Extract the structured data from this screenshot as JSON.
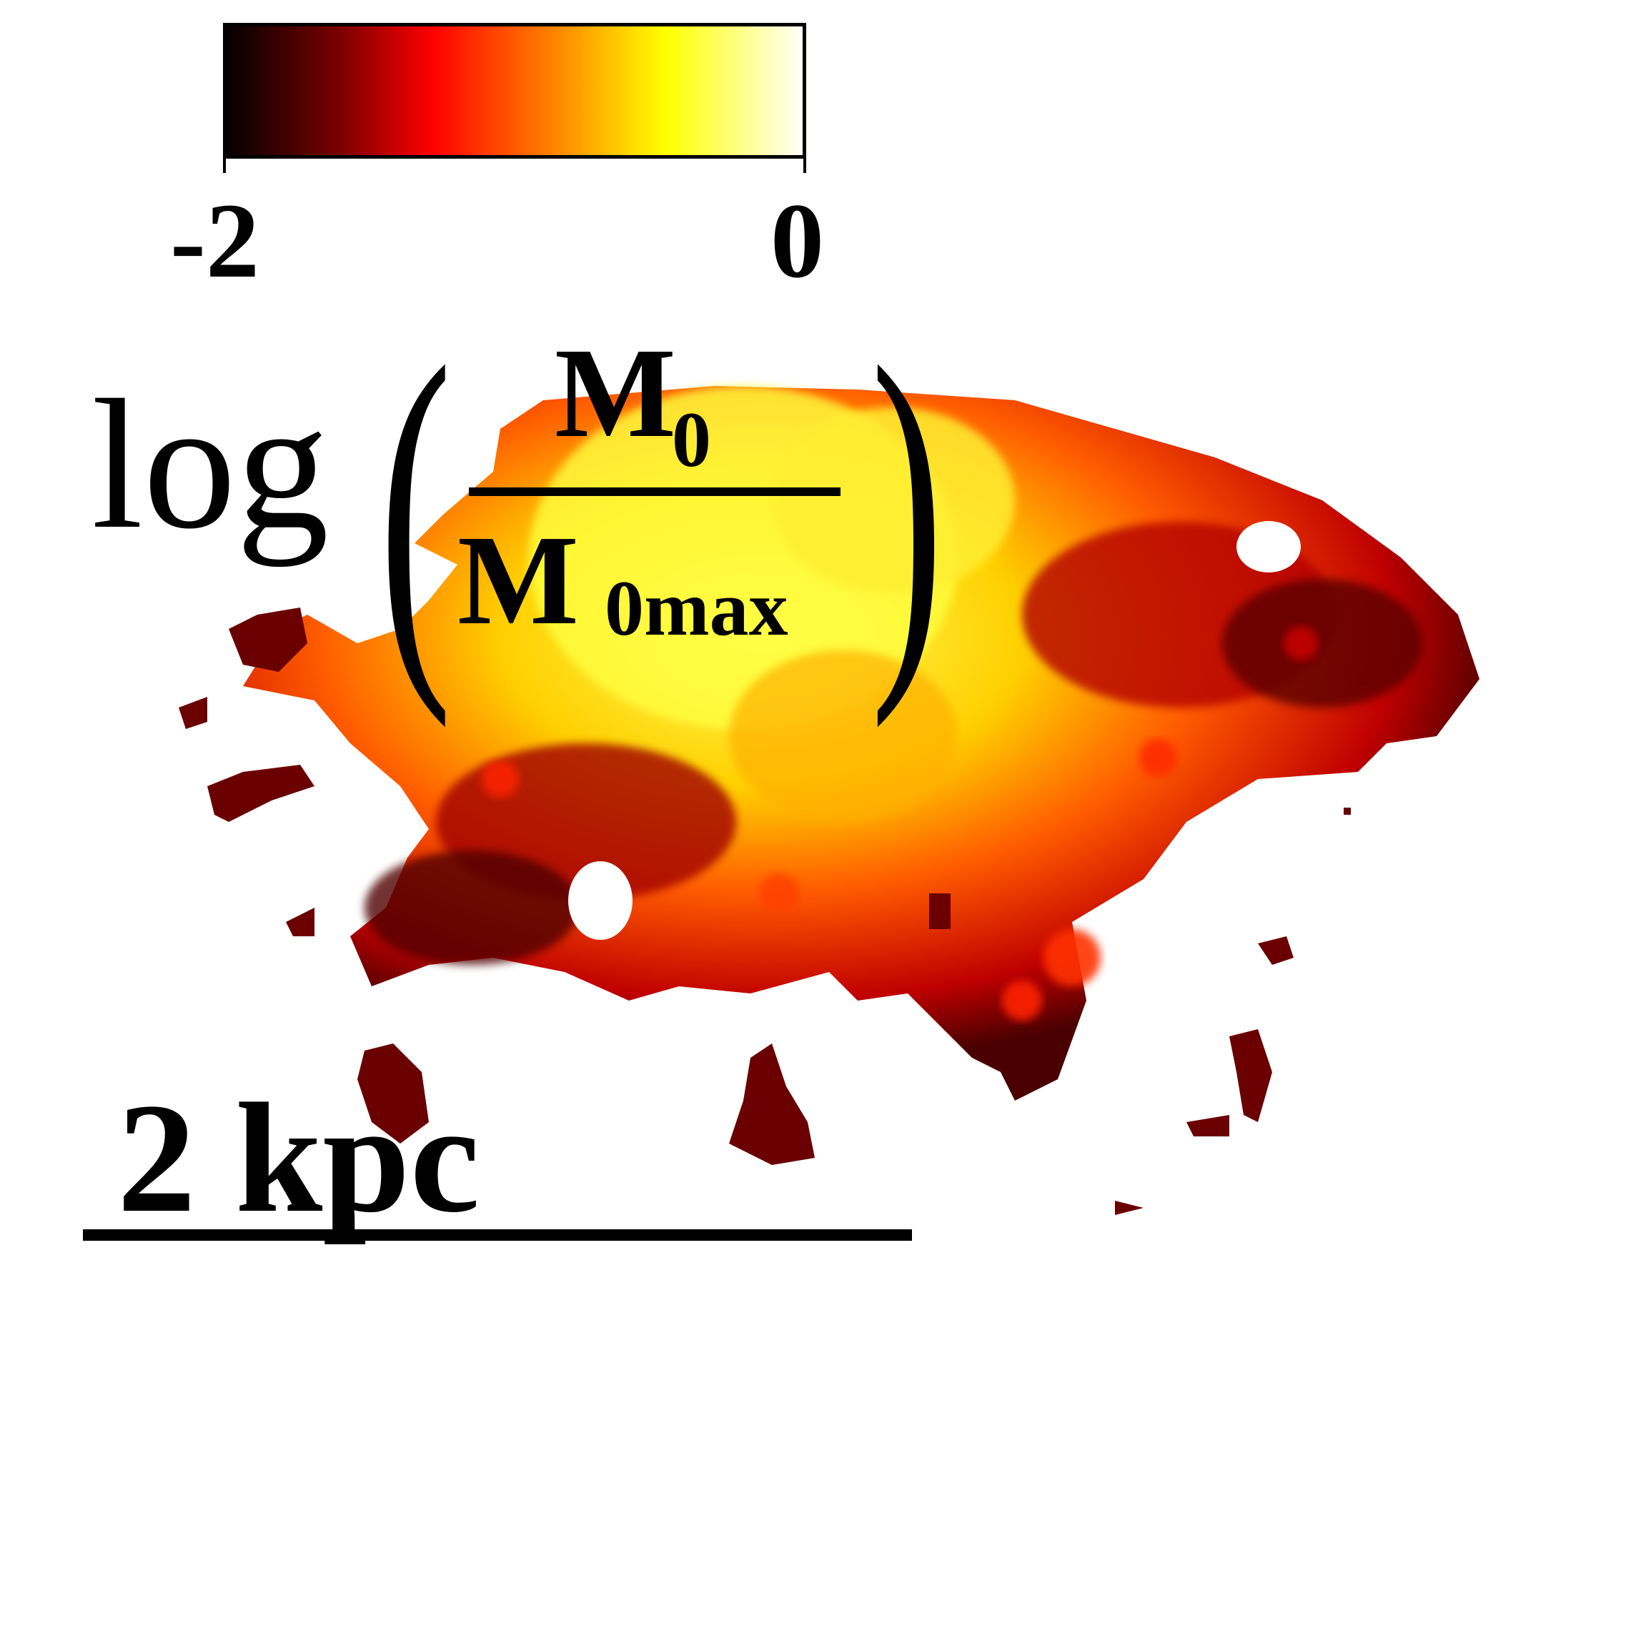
{
  "image": {
    "subject": "galaxy-map",
    "colormap": [
      "#000000",
      "#7a0000",
      "#ff0000",
      "#ff8c00",
      "#ffff00",
      "#ffffff"
    ],
    "background": "#ffffff"
  },
  "colorbar": {
    "min_label": "-2",
    "max_label": "0"
  },
  "colorbar_label": {
    "prefix": "log",
    "paren_open": "(",
    "paren_close": ")",
    "numerator": "M",
    "numerator_sub": "0",
    "denominator": "M",
    "denominator_sub": "0max"
  },
  "scale_bar": {
    "label": "2 kpc"
  }
}
